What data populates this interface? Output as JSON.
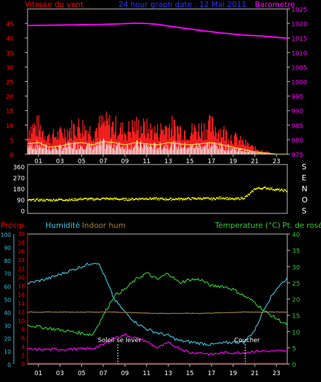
{
  "colors": {
    "background": "#000000",
    "axis": "#c0c0c0",
    "wind": "#ff0000",
    "gust": "#ff2020",
    "calm": "#ffffff",
    "barometer": "#ff00ff",
    "direction": "#ffff00",
    "humidity": "#40c0e0",
    "indoor_hum": "#a08040",
    "temperature": "#33cc33",
    "dewpoint": "#ff00ff",
    "precip": "#ff0000",
    "title": "#3030ff",
    "events": "#ffffff"
  },
  "top_panel": {
    "left_label": "Vitesse du vent",
    "title": "24 hour graph date : 12 Mai 2011",
    "right_label": "Barometre",
    "left_ticks": [
      "0",
      "5",
      "10",
      "15",
      "20",
      "25",
      "30",
      "35",
      "40",
      "45"
    ],
    "right_ticks": [
      "975",
      "980",
      "985",
      "990",
      "995",
      "1000",
      "1005",
      "1010",
      "1015",
      "1020",
      "1025"
    ],
    "hour_ticks": [
      "01",
      "03",
      "05",
      "07",
      "09",
      "11",
      "13",
      "15",
      "17",
      "19",
      "21",
      "23"
    ]
  },
  "direction_panel": {
    "ticks": [
      "0",
      "90",
      "180",
      "270",
      "360"
    ],
    "compass": [
      "S",
      "E",
      "N",
      "O",
      "S"
    ]
  },
  "bottom_panel": {
    "precip_label": "Précip.",
    "humidity_label": "Humidité",
    "indoor_label": "Indoor hum",
    "temp_label": "Temperature (°C)",
    "dew_label": "Pt. de rosée",
    "humidity_ticks": [
      "0",
      "10",
      "20",
      "30",
      "40",
      "50",
      "60",
      "70",
      "80",
      "90",
      "100"
    ],
    "precip_ticks": [
      "0",
      "2",
      "4",
      "6",
      "8",
      "10",
      "12",
      "14",
      "16",
      "18",
      "20",
      "22",
      "24",
      "26",
      "28",
      "30"
    ],
    "temp_ticks": [
      "0",
      "5",
      "10",
      "15",
      "20",
      "25",
      "30",
      "35",
      "40"
    ],
    "sunrise_label": "Soleil se lever",
    "sunset_label": "Coucher",
    "hour_ticks": [
      "01",
      "03",
      "05",
      "07",
      "09",
      "11",
      "13",
      "15",
      "17",
      "19",
      "21",
      "23"
    ]
  },
  "chart_data": [
    {
      "type": "line",
      "title": "24 hour graph date : 12 Mai 2011",
      "series": [
        {
          "name": "Barometre",
          "x": [
            0,
            2,
            4,
            6,
            8,
            10,
            11,
            12,
            14,
            16,
            18,
            20,
            22,
            24
          ],
          "values": [
            1019.3,
            1019.4,
            1019.5,
            1019.6,
            1019.8,
            1020.1,
            1020.0,
            1019.7,
            1018.6,
            1017.6,
            1016.7,
            1016.0,
            1015.6,
            1014.9
          ]
        },
        {
          "name": "Vitesse du vent",
          "x": [
            0,
            1,
            2,
            3,
            4,
            5,
            6,
            7,
            8,
            9,
            10,
            11,
            12,
            13,
            14,
            15,
            16,
            17,
            18,
            19,
            20,
            21,
            22,
            23,
            24
          ],
          "values": [
            9,
            10,
            6,
            7,
            9,
            10,
            8,
            11,
            10,
            8,
            10,
            9,
            8,
            10,
            9,
            8,
            9,
            10,
            8,
            6,
            4,
            2,
            1,
            0,
            0
          ]
        }
      ],
      "xlim": [
        0,
        24
      ],
      "ylim": [
        0,
        45
      ],
      "ylim_right": [
        975,
        1025
      ]
    },
    {
      "type": "scatter",
      "series": [
        {
          "name": "Direction",
          "x": [
            0,
            1,
            2,
            3,
            4,
            5,
            6,
            7,
            8,
            9,
            10,
            11,
            12,
            13,
            14,
            15,
            16,
            17,
            18,
            19,
            20,
            20.5,
            21,
            22,
            23,
            24
          ],
          "values": [
            88,
            92,
            90,
            95,
            92,
            100,
            98,
            102,
            100,
            96,
            100,
            104,
            100,
            98,
            100,
            102,
            104,
            100,
            110,
            96,
            110,
            140,
            185,
            190,
            175,
            165
          ]
        }
      ],
      "xlim": [
        0,
        24
      ],
      "ylim": [
        0,
        360
      ]
    },
    {
      "type": "line",
      "series": [
        {
          "name": "Humidité",
          "x": [
            0,
            2,
            4,
            6,
            6.5,
            7,
            8,
            9,
            10,
            11,
            12,
            13,
            14,
            15,
            16,
            17,
            18,
            19,
            20,
            21,
            22,
            23,
            24
          ],
          "values": [
            62,
            66,
            72,
            78,
            78,
            70,
            50,
            40,
            32,
            27,
            24,
            22,
            18,
            17,
            16,
            15,
            16,
            17,
            17,
            26,
            45,
            58,
            66
          ]
        },
        {
          "name": "Indoor hum",
          "x": [
            0,
            4,
            8,
            12,
            16,
            20,
            24
          ],
          "values": [
            40,
            40,
            40,
            39,
            39,
            40,
            40
          ]
        },
        {
          "name": "Temperature (°C)",
          "x": [
            0,
            2,
            4,
            6,
            7,
            8,
            9,
            10,
            11,
            12,
            13,
            14,
            15,
            16,
            17,
            18,
            19,
            20,
            21,
            22,
            23,
            24
          ],
          "values": [
            12,
            11,
            10,
            9,
            15,
            21,
            23,
            26,
            28,
            26,
            28,
            25,
            26,
            26,
            24,
            24,
            23,
            21,
            19,
            16,
            14,
            12
          ]
        },
        {
          "name": "Pt. de rosée",
          "x": [
            0,
            2,
            4,
            6,
            7,
            8,
            9,
            10,
            11,
            12,
            13,
            14,
            15,
            16,
            17,
            18,
            19,
            20,
            21,
            22,
            23,
            24
          ],
          "values": [
            4.5,
            4.5,
            4.6,
            4.8,
            6,
            8,
            9,
            8,
            7,
            5,
            6.5,
            5,
            3.5,
            3.5,
            3,
            3.5,
            3.5,
            3.5,
            4,
            4,
            4,
            4
          ]
        },
        {
          "name": "Précip.",
          "x": [
            0,
            24
          ],
          "values": [
            0,
            0
          ]
        }
      ],
      "xlim": [
        0,
        24
      ],
      "ylim": [
        0,
        100
      ],
      "ylim_right": [
        0,
        40
      ]
    }
  ]
}
